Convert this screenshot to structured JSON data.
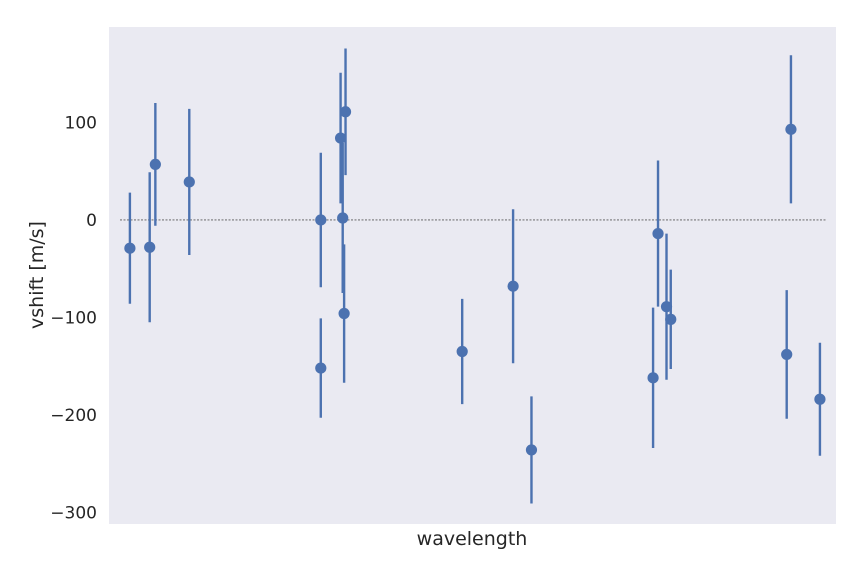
{
  "chart_data": {
    "type": "scatter",
    "title": "",
    "xlabel": "wavelength",
    "ylabel": "vshift [m/s]",
    "x_ticks_visible": false,
    "ylim": [
      -312,
      198
    ],
    "y_ticks": [
      100,
      0,
      -100,
      -200,
      -300
    ],
    "y_tick_labels": [
      "100",
      "0",
      "−100",
      "−200",
      "−300"
    ],
    "zero_line": 0,
    "grid": false,
    "background": "#eaeaf2",
    "color": "#4c72b0",
    "xlim": [
      0,
      1000
    ],
    "points": [
      {
        "x": 14,
        "y": -29,
        "err": 57
      },
      {
        "x": 42,
        "y": -28,
        "err": 77
      },
      {
        "x": 50,
        "y": 57,
        "err": 63
      },
      {
        "x": 98,
        "y": 39,
        "err": 75
      },
      {
        "x": 284,
        "y": 0,
        "err": 69
      },
      {
        "x": 284,
        "y": -152,
        "err": 51
      },
      {
        "x": 312,
        "y": 84,
        "err": 67
      },
      {
        "x": 315,
        "y": 2,
        "err": 77
      },
      {
        "x": 317,
        "y": -96,
        "err": 71
      },
      {
        "x": 319,
        "y": 111,
        "err": 65
      },
      {
        "x": 484,
        "y": -135,
        "err": 54
      },
      {
        "x": 556,
        "y": -68,
        "err": 79
      },
      {
        "x": 582,
        "y": -236,
        "err": 55
      },
      {
        "x": 754,
        "y": -162,
        "err": 72
      },
      {
        "x": 761,
        "y": -14,
        "err": 75
      },
      {
        "x": 773,
        "y": -89,
        "err": 75
      },
      {
        "x": 779,
        "y": -102,
        "err": 51
      },
      {
        "x": 943,
        "y": -138,
        "err": 66
      },
      {
        "x": 949,
        "y": 93,
        "err": 76
      },
      {
        "x": 990,
        "y": -184,
        "err": 58
      }
    ]
  }
}
